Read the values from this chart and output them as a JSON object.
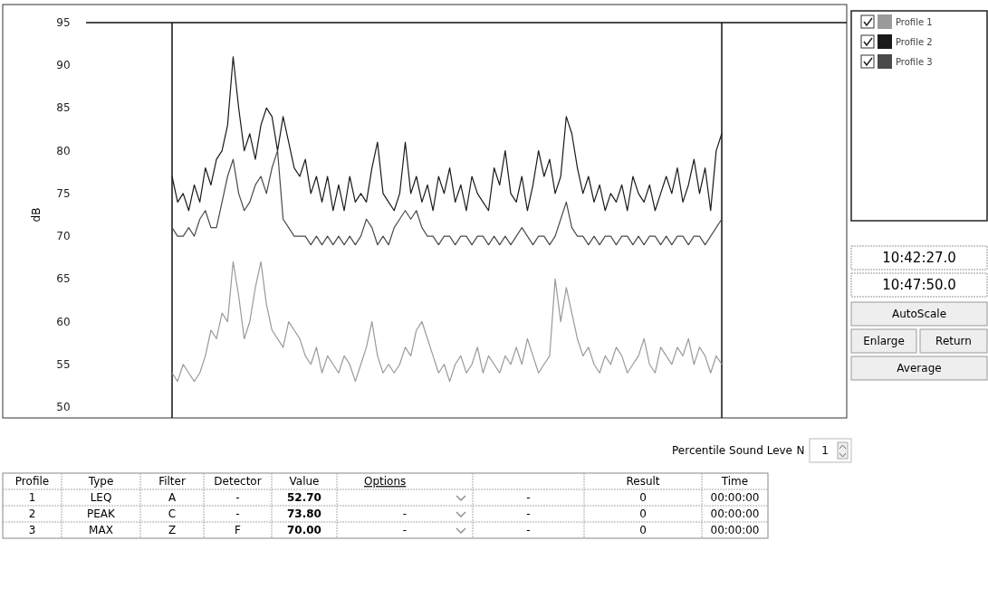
{
  "chart_data": {
    "type": "line",
    "ylabel": "dB",
    "ylim": [
      50,
      95
    ],
    "yticks": [
      50,
      55,
      60,
      65,
      70,
      75,
      80,
      85,
      90,
      95
    ],
    "grid": false,
    "legend": "top right",
    "tick_labels": "y",
    "line_style": "solid",
    "categories": [
      null,
      null,
      null,
      null,
      null,
      null,
      null,
      null,
      null,
      null,
      null,
      null,
      null,
      null,
      null,
      null,
      null,
      null,
      null,
      null,
      null,
      null,
      null,
      null,
      null,
      null,
      null,
      null,
      null,
      null,
      null,
      null,
      null,
      null,
      null,
      null,
      null,
      null,
      null,
      null,
      null,
      null,
      null,
      null,
      null,
      null,
      null,
      null,
      null,
      null,
      null,
      null,
      null,
      null,
      null,
      null,
      null,
      null,
      null,
      null,
      null,
      null,
      null,
      null,
      null,
      null,
      null,
      null,
      null,
      null,
      null,
      null,
      null,
      null,
      null,
      null,
      null,
      null,
      null,
      null,
      null,
      null,
      null,
      null,
      null,
      null,
      null,
      null,
      null,
      null,
      null,
      null,
      null,
      null,
      null,
      null,
      null,
      null,
      null,
      null
    ],
    "series": [
      {
        "name": "Profile 1",
        "color": "#9a9a9a",
        "values": [
          54,
          53,
          55,
          54,
          53,
          54,
          56,
          59,
          58,
          61,
          60,
          67,
          63,
          58,
          60,
          64,
          67,
          62,
          59,
          58,
          57,
          60,
          59,
          58,
          56,
          55,
          57,
          54,
          56,
          55,
          54,
          56,
          55,
          53,
          55,
          57,
          60,
          56,
          54,
          55,
          54,
          55,
          57,
          56,
          59,
          60,
          58,
          56,
          54,
          55,
          53,
          55,
          56,
          54,
          55,
          57,
          54,
          56,
          55,
          54,
          56,
          55,
          57,
          55,
          58,
          56,
          54,
          55,
          56,
          65,
          60,
          64,
          61,
          58,
          56,
          57,
          55,
          54,
          56,
          55,
          57,
          56,
          54,
          55,
          56,
          58,
          55,
          54,
          57,
          56,
          55,
          57,
          56,
          58,
          55,
          57,
          56,
          54,
          56,
          55
        ]
      },
      {
        "name": "Profile 2",
        "color": "#1a1a1a",
        "values": [
          77,
          74,
          75,
          73,
          76,
          74,
          78,
          76,
          79,
          80,
          83,
          91,
          85,
          80,
          82,
          79,
          83,
          85,
          84,
          80,
          84,
          81,
          78,
          77,
          79,
          75,
          77,
          74,
          77,
          73,
          76,
          73,
          77,
          74,
          75,
          74,
          78,
          81,
          75,
          74,
          73,
          75,
          81,
          75,
          77,
          74,
          76,
          73,
          77,
          75,
          78,
          74,
          76,
          73,
          77,
          75,
          74,
          73,
          78,
          76,
          80,
          75,
          74,
          77,
          73,
          76,
          80,
          77,
          79,
          75,
          77,
          84,
          82,
          78,
          75,
          77,
          74,
          76,
          73,
          75,
          74,
          76,
          73,
          77,
          75,
          74,
          76,
          73,
          75,
          77,
          75,
          78,
          74,
          76,
          79,
          75,
          78,
          73,
          80,
          82
        ]
      },
      {
        "name": "Profile 3",
        "color": "#4a4a4a",
        "values": [
          71,
          70,
          70,
          71,
          70,
          72,
          73,
          71,
          71,
          74,
          77,
          79,
          75,
          73,
          74,
          76,
          77,
          75,
          78,
          80,
          72,
          71,
          70,
          70,
          70,
          69,
          70,
          69,
          70,
          69,
          70,
          69,
          70,
          69,
          70,
          72,
          71,
          69,
          70,
          69,
          71,
          72,
          73,
          72,
          73,
          71,
          70,
          70,
          69,
          70,
          70,
          69,
          70,
          70,
          69,
          70,
          70,
          69,
          70,
          69,
          70,
          69,
          70,
          71,
          70,
          69,
          70,
          70,
          69,
          70,
          72,
          74,
          71,
          70,
          70,
          69,
          70,
          69,
          70,
          70,
          69,
          70,
          70,
          69,
          70,
          69,
          70,
          70,
          69,
          70,
          69,
          70,
          70,
          69,
          70,
          70,
          69,
          70,
          71,
          72
        ]
      }
    ],
    "annotations": [
      "10:42:27.0",
      "10:47:50.0",
      "AutoScale",
      "Enlarge",
      "Return",
      "Average",
      "Percentile Sound Leve",
      "N",
      "1",
      "Profile",
      "Type",
      "Filter",
      "Detector",
      "Value",
      "Options",
      "Result",
      "Time",
      "1",
      "LEQ",
      "A",
      "-",
      "52.70",
      "-",
      "0",
      "00:00:00",
      "2",
      "PEAK",
      "C",
      "-",
      "73.80",
      "-",
      "-",
      "0",
      "00:00:00",
      "3",
      "MAX",
      "Z",
      "F",
      "70.00",
      "-",
      "-",
      "0",
      "00:00:00"
    ]
  }
}
